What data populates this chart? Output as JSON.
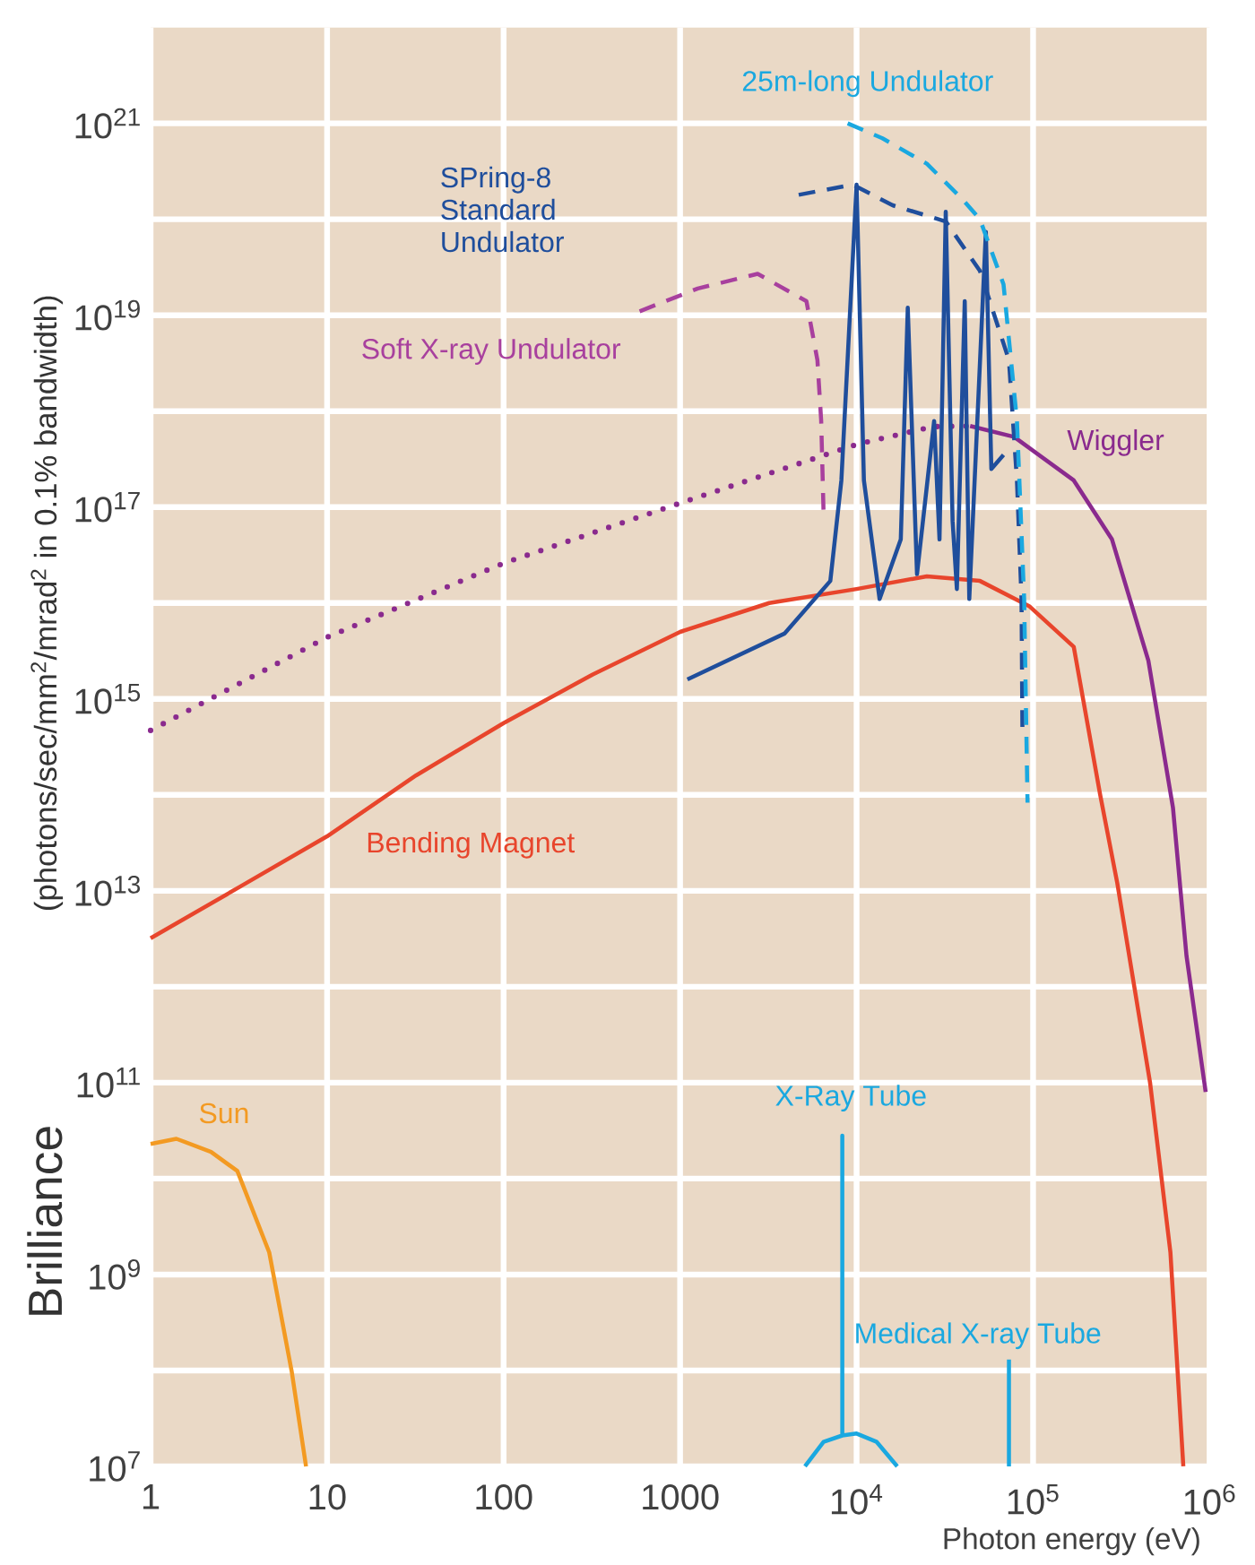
{
  "chart_data": {
    "type": "line",
    "ylabel": "Brilliance",
    "xlabel": "Photon energy (eV)",
    "annotations": [
      "(photons/sec/mm$^{2}$/mrad$^{2}$ in 0.1% bandwidth)"
    ],
    "log": "xy",
    "grid": true,
    "legend": false,
    "xlim": [
      1,
      1000000
    ],
    "ylim": [
      10000000.0,
      1e+22
    ],
    "xticks": [
      1,
      10,
      100,
      1000,
      {
        "value": 10000,
        "label": "10$^{4}$"
      },
      {
        "value": 100000,
        "label": "10$^{5}$"
      },
      {
        "value": 1000000,
        "label": "10$^{6}$"
      }
    ],
    "yticks": [
      {
        "value": 10000000.0,
        "label": "10$^{7}$"
      },
      {
        "value": 100000000.0,
        "label": null
      },
      {
        "value": 1000000000.0,
        "label": "10$^{9}$"
      },
      {
        "value": 10000000000.0,
        "label": null
      },
      {
        "value": 100000000000.0,
        "label": "10$^{11}$"
      },
      {
        "value": 1000000000000.0,
        "label": null
      },
      {
        "value": 10000000000000.0,
        "label": "10$^{13}$"
      },
      {
        "value": 100000000000000.0,
        "label": null
      },
      {
        "value": 1000000000000000.0,
        "label": "10$^{15}$"
      },
      {
        "value": 1e+16,
        "label": null
      },
      {
        "value": 1e+17,
        "label": "10$^{17}$"
      },
      {
        "value": 1e+18,
        "label": null
      },
      {
        "value": 1e+19,
        "label": "10$^{19}$"
      },
      {
        "value": 1e+20,
        "label": null
      },
      {
        "value": 1e+21,
        "label": "10$^{21}$"
      }
    ],
    "series": [
      {
        "name": "Bending Magnet",
        "color": "#e8452c",
        "line_style": "solid",
        "x": [
          1,
          3.2,
          10,
          32,
          100,
          320,
          1000,
          3200,
          10000,
          25000,
          50000,
          95000,
          170000,
          240000,
          300000,
          460000,
          600000,
          710000
        ],
        "values": [
          3200000000000.0,
          11000000000000.0,
          37000000000000.0,
          160000000000000.0,
          560000000000000.0,
          1800000000000000.0,
          5000000000000000.0,
          1e+16,
          1.4e+16,
          1.9e+16,
          1.7e+16,
          9300000000000000.0,
          3500000000000000.0,
          100000000000000.0,
          12000000000000.0,
          100000000000.0,
          1700000000.0,
          10000000.0
        ]
      },
      {
        "color": "#8a2a8e",
        "line_style": "dotted",
        "x": [
          1,
          10,
          100,
          1000,
          10000,
          27000,
          44000
        ],
        "values": [
          470000000000000.0,
          4400000000000000.0,
          2.6e+16,
          1.1e+17,
          4.5e+17,
          6.9e+17,
          7e+17
        ]
      },
      {
        "name": "Wiggler",
        "color": "#8a2a8e",
        "line_style": "solid",
        "x": [
          44000,
          78000,
          170000,
          280000,
          450000,
          620000,
          740000,
          950000
        ],
        "values": [
          7e+17,
          5.4e+17,
          1.9e+17,
          4.6e+16,
          2500000000000000.0,
          74000000000000.0,
          2100000000000.0,
          80000000000.0
        ]
      },
      {
        "name": "Soft X-ray Undulator",
        "color": "#a8409e",
        "line_style": "dashed",
        "x": [
          590,
          1260,
          2750,
          5200,
          6000,
          6300,
          6500
        ],
        "values": [
          1.1e+19,
          1.9e+19,
          2.7e+19,
          1.4e+19,
          3.4e+18,
          8e+17,
          8.7e+16
        ]
      },
      {
        "color": "#1f4e9c",
        "line_style": "dashed",
        "x": [
          4700,
          9500,
          16000,
          32000,
          50000,
          73000,
          81000,
          86000,
          87000
        ],
        "values": [
          1.8e+20,
          2.3e+20,
          1.4e+20,
          9.5e+19,
          2.9e+19,
          3.4e+18,
          1.9e+17,
          1.1e+16,
          470000000000000.0
        ]
      },
      {
        "name": "SPring-8 Standard Undulator",
        "color": "#1f4e9c",
        "line_style": "solid",
        "x": [
          1100,
          3900,
          7100,
          8200,
          10000,
          11000,
          13500,
          17800,
          19500,
          22000,
          27500,
          29500,
          32000,
          35000,
          37000,
          41000,
          43500,
          54000,
          58000,
          68000
        ],
        "values": [
          1600000000000000.0,
          4800000000000000.0,
          1.7e+16,
          1.9e+17,
          2.3e+20,
          1.9e+17,
          1.1e+16,
          4.6e+16,
          1.2e+19,
          2e+16,
          7.9e+17,
          4.6e+16,
          1.2e+20,
          7.1e+16,
          1.4e+16,
          1.4e+19,
          1.1e+16,
          7.4e+19,
          2.5e+17,
          3.5e+17
        ]
      },
      {
        "name": "25m-long Undulator",
        "color": "#1aa8e0",
        "line_style": "dashed",
        "x": [
          8900,
          14000,
          25000,
          40000,
          50000,
          68000,
          81000,
          89000,
          93000
        ],
        "values": [
          1e+21,
          7e+20,
          3.8e+20,
          1.6e+20,
          1e+20,
          2.1e+19,
          8e+17,
          1.1e+16,
          83000000000000.0
        ]
      },
      {
        "name": "Sun",
        "color": "#f39a22",
        "line_style": "solid",
        "x": [
          1,
          1.4,
          2.2,
          3.1,
          4.7,
          6.3,
          7.6
        ],
        "values": [
          23000000000.0,
          26000000000.0,
          19000000000.0,
          12000000000.0,
          1700000000.0,
          98000000.0,
          10000000.0
        ]
      },
      {
        "name": "X-Ray Tube",
        "color": "#1aa8e0",
        "line_style": "solid",
        "x": [
          5100,
          6500,
          8300,
          8300,
          8300,
          10000,
          13000,
          17000
        ],
        "values": [
          10000000.0,
          18000000.0,
          21000000.0,
          28000000000.0,
          21000000.0,
          22000000.0,
          18000000.0,
          10000000.0
        ]
      },
      {
        "name": "Medical X-ray Tube",
        "color": "#1aa8e0",
        "line_style": "solid",
        "x": [
          73000,
          73000
        ],
        "values": [
          10000000.0,
          130000000.0
        ]
      }
    ]
  }
}
